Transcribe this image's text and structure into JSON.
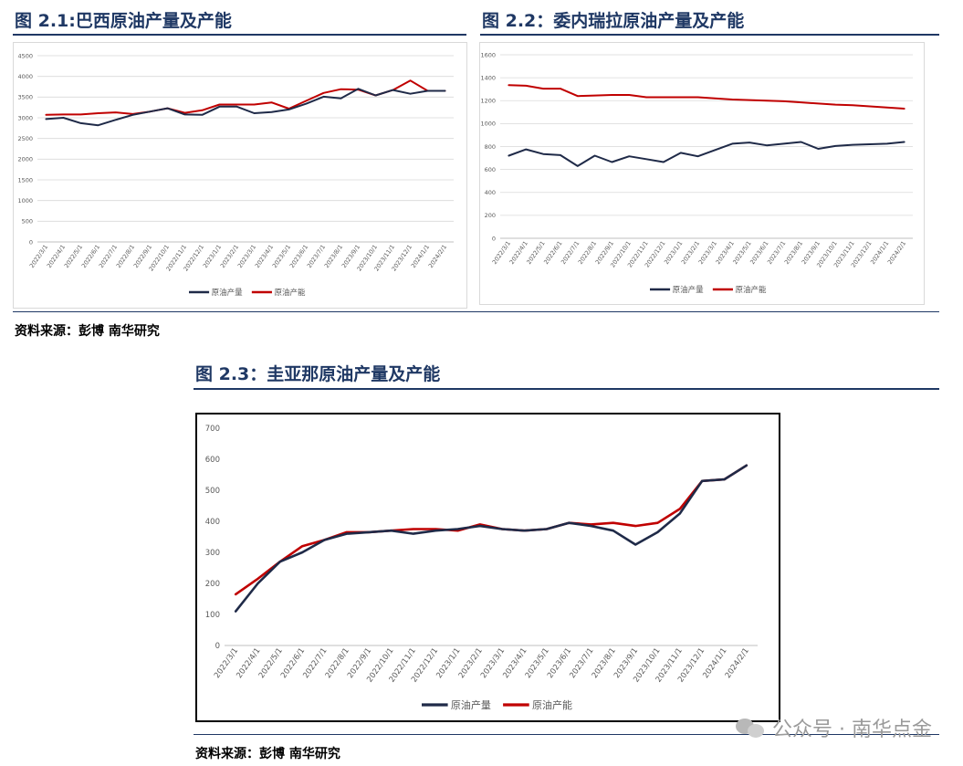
{
  "figures": {
    "fig1": {
      "title": "图 2.1:巴西原油产量及产能"
    },
    "fig2": {
      "title": "图 2.2：委内瑞拉原油产量及产能"
    },
    "fig3": {
      "title": "图 2.3：圭亚那原油产量及产能"
    }
  },
  "sources": {
    "top": "资料来源：彭博 南华研究",
    "bottom": "资料来源：彭博 南华研究"
  },
  "watermark": {
    "text": "公众号 · 南华点金",
    "icon": "wechat-icon"
  },
  "colors": {
    "production": "#1f2a48",
    "capacity": "#c00000",
    "title": "#1f3864"
  },
  "chart_data": [
    {
      "type": "line",
      "categories": [
        "2022/3/1",
        "2022/4/1",
        "2022/5/1",
        "2022/6/1",
        "2022/7/1",
        "2022/8/1",
        "2022/9/1",
        "2022/10/1",
        "2022/11/1",
        "2022/12/1",
        "2023/1/1",
        "2023/2/1",
        "2023/3/1",
        "2023/4/1",
        "2023/5/1",
        "2023/6/1",
        "2023/7/1",
        "2023/8/1",
        "2023/9/1",
        "2023/10/1",
        "2023/11/1",
        "2023/12/1",
        "2024/1/1",
        "2024/2/1"
      ],
      "ylim": [
        0,
        4500
      ],
      "yticks": [
        0,
        500,
        1000,
        1500,
        2000,
        2500,
        3000,
        3500,
        4000,
        4500
      ],
      "grid": true,
      "legend": "bottom",
      "series": [
        {
          "name": "原油产量",
          "values": [
            2970,
            3000,
            2870,
            2820,
            2950,
            3070,
            3150,
            3230,
            3080,
            3070,
            3270,
            3270,
            3110,
            3140,
            3200,
            3340,
            3510,
            3470,
            3700,
            3540,
            3670,
            3580,
            3650,
            3650
          ]
        },
        {
          "name": "原油产能",
          "values": [
            3070,
            3080,
            3080,
            3110,
            3130,
            3090,
            3150,
            3230,
            3120,
            3180,
            3320,
            3320,
            3320,
            3370,
            3220,
            3410,
            3600,
            3690,
            3680,
            3540,
            3670,
            3900,
            3650,
            3650
          ]
        }
      ]
    },
    {
      "type": "line",
      "categories": [
        "2022/3/1",
        "2022/4/1",
        "2022/5/1",
        "2022/6/1",
        "2022/7/1",
        "2022/8/1",
        "2022/9/1",
        "2022/10/1",
        "2022/11/1",
        "2022/12/1",
        "2023/1/1",
        "2023/2/1",
        "2023/3/1",
        "2023/4/1",
        "2023/5/1",
        "2023/6/1",
        "2023/7/1",
        "2023/8/1",
        "2023/9/1",
        "2023/10/1",
        "2023/11/1",
        "2023/12/1",
        "2024/1/1",
        "2024/2/1"
      ],
      "ylim": [
        0,
        1600
      ],
      "yticks": [
        0,
        200,
        400,
        600,
        800,
        1000,
        1200,
        1400,
        1600
      ],
      "grid": true,
      "legend": "bottom",
      "series": [
        {
          "name": "原油产量",
          "values": [
            720,
            775,
            735,
            725,
            630,
            720,
            665,
            715,
            690,
            665,
            745,
            715,
            770,
            825,
            835,
            810,
            825,
            840,
            780,
            805,
            815,
            820,
            825,
            840
          ]
        },
        {
          "name": "原油产能",
          "values": [
            1335,
            1330,
            1305,
            1305,
            1240,
            1245,
            1250,
            1250,
            1230,
            1230,
            1230,
            1230,
            1220,
            1210,
            1205,
            1200,
            1195,
            1185,
            1175,
            1165,
            1160,
            1150,
            1140,
            1130
          ]
        }
      ]
    },
    {
      "type": "line",
      "categories": [
        "2022/3/1",
        "2022/4/1",
        "2022/5/1",
        "2022/6/1",
        "2022/7/1",
        "2022/8/1",
        "2022/9/1",
        "2022/10/1",
        "2022/11/1",
        "2022/12/1",
        "2023/1/1",
        "2023/2/1",
        "2023/3/1",
        "2023/4/1",
        "2023/5/1",
        "2023/6/1",
        "2023/7/1",
        "2023/8/1",
        "2023/9/1",
        "2023/10/1",
        "2023/11/1",
        "2023/12/1",
        "2024/1/1",
        "2024/2/1"
      ],
      "ylim": [
        0,
        700
      ],
      "yticks": [
        0,
        100,
        200,
        300,
        400,
        500,
        600,
        700
      ],
      "grid": false,
      "legend": "bottom",
      "series": [
        {
          "name": "原油产量",
          "values": [
            110,
            200,
            270,
            300,
            340,
            360,
            365,
            370,
            360,
            370,
            375,
            385,
            375,
            370,
            375,
            395,
            385,
            370,
            325,
            365,
            425,
            530,
            535,
            580
          ]
        },
        {
          "name": "原油产能",
          "values": [
            165,
            215,
            270,
            320,
            340,
            365,
            365,
            370,
            375,
            375,
            370,
            390,
            375,
            370,
            375,
            395,
            390,
            395,
            385,
            395,
            440,
            530,
            535,
            580
          ]
        }
      ]
    }
  ]
}
